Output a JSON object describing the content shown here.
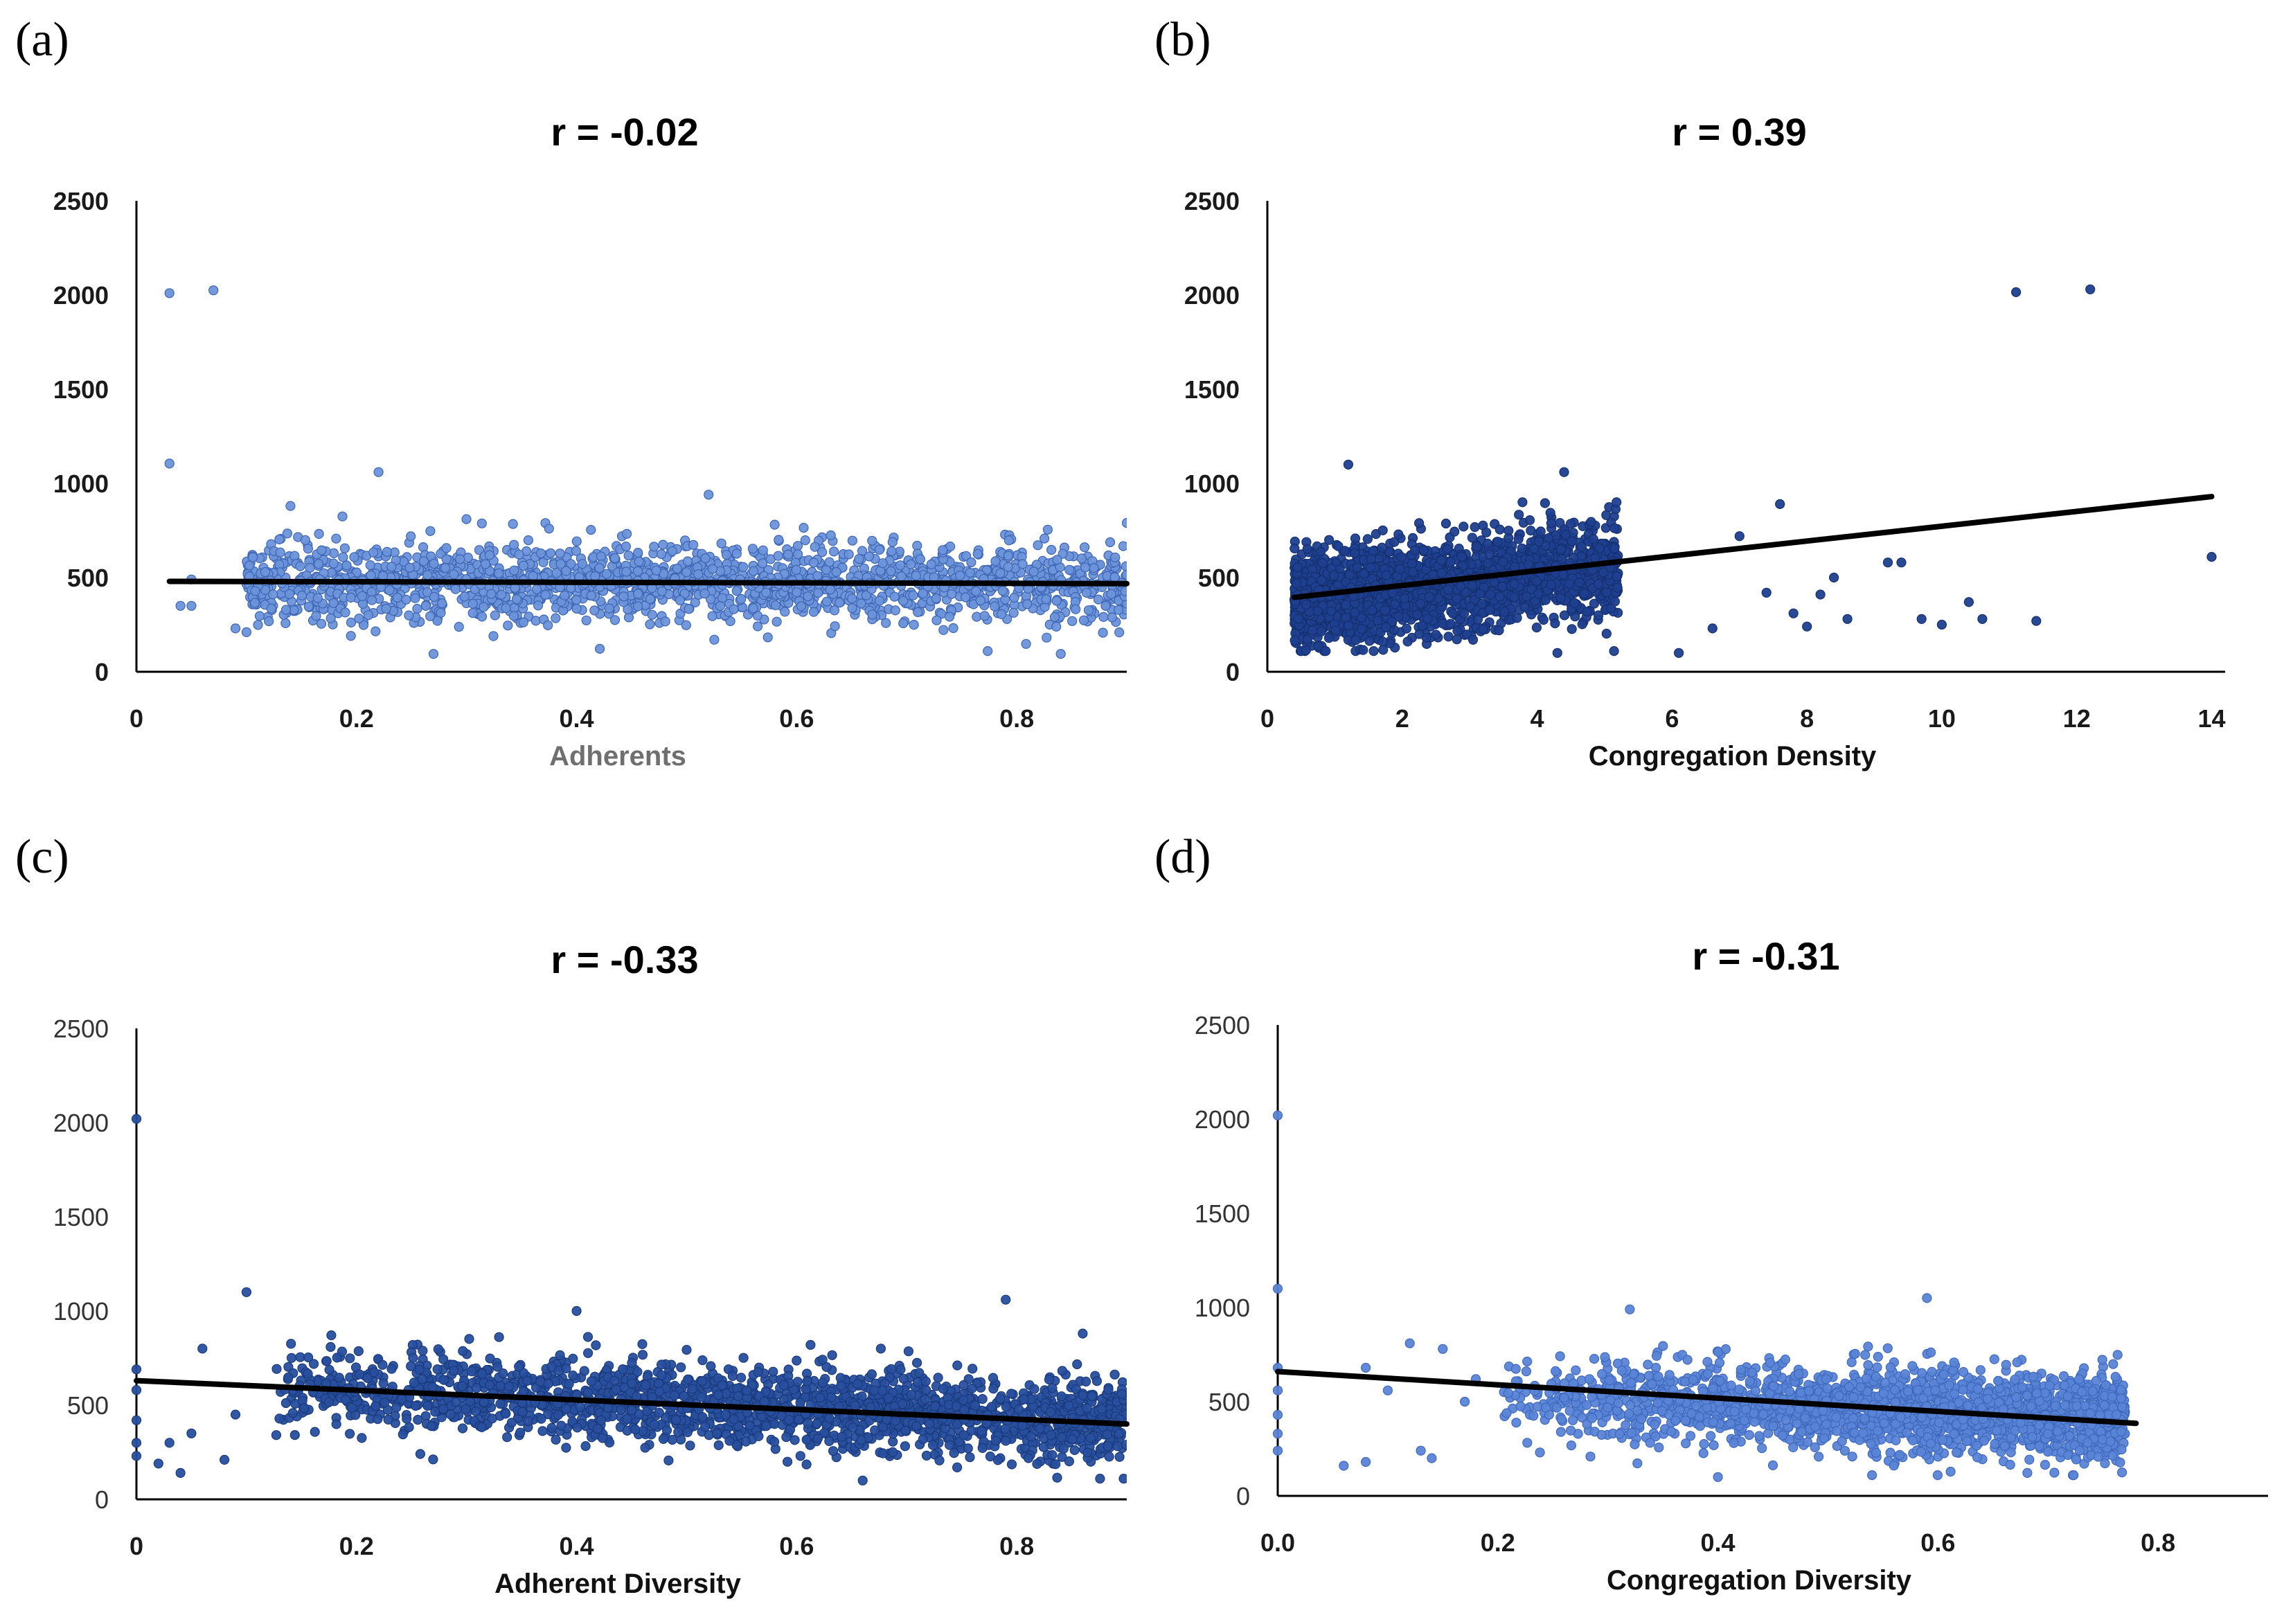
{
  "chart_data": [
    {
      "panel": "(a)",
      "type": "scatter",
      "title": "r = -0.02",
      "xlabel": "Adherents",
      "ylabel": "",
      "xlim": [
        0,
        0.9
      ],
      "ylim": [
        0,
        2500
      ],
      "xticks": [
        "0",
        "0.2",
        "0.4",
        "0.6",
        "0.8"
      ],
      "yticks": [
        "0",
        "500",
        "1000",
        "1500",
        "2000",
        "2500"
      ],
      "point_color": "#6b93da",
      "point_stroke": "#3d65b3",
      "trend": {
        "x": [
          0.03,
          0.9
        ],
        "y": [
          480,
          468
        ]
      },
      "cloud": {
        "xmin": 0.1,
        "xmax": 0.9,
        "ymean_start": 480,
        "ymean_end": 470,
        "spread": 105,
        "count": 1800
      },
      "points": [
        {
          "x": 0.03,
          "y": 2010
        },
        {
          "x": 0.07,
          "y": 2025
        },
        {
          "x": 0.03,
          "y": 1105
        },
        {
          "x": 0.04,
          "y": 350
        },
        {
          "x": 0.05,
          "y": 490
        },
        {
          "x": 0.05,
          "y": 350
        },
        {
          "x": 0.09,
          "y": 230
        },
        {
          "x": 0.1,
          "y": 210
        },
        {
          "x": 0.14,
          "y": 880
        },
        {
          "x": 0.22,
          "y": 1060
        },
        {
          "x": 0.52,
          "y": 940
        },
        {
          "x": 0.84,
          "y": 95
        },
        {
          "x": 0.27,
          "y": 95
        },
        {
          "x": 0.9,
          "y": 790
        }
      ]
    },
    {
      "panel": "(b)",
      "type": "scatter",
      "title": "r = 0.39",
      "xlabel": "Congregation Density",
      "ylabel": "",
      "xlim": [
        0,
        14.2
      ],
      "ylim": [
        0,
        2500
      ],
      "xticks": [
        "0",
        "2",
        "4",
        "6",
        "8",
        "10",
        "12",
        "14"
      ],
      "yticks": [
        "0",
        "500",
        "1000",
        "1500",
        "2000",
        "2500"
      ],
      "point_color": "#1f3f8f",
      "point_stroke": "#15306f",
      "trend": {
        "x": [
          0.4,
          14
        ],
        "y": [
          395,
          930
        ]
      },
      "cloud": {
        "xmin": 0.4,
        "xmax": 5.2,
        "ymean_start": 370,
        "ymean_end": 560,
        "spread": 120,
        "count": 2200
      },
      "points": [
        {
          "x": 11.1,
          "y": 2015
        },
        {
          "x": 12.2,
          "y": 2030
        },
        {
          "x": 14.0,
          "y": 610
        },
        {
          "x": 1.2,
          "y": 1100
        },
        {
          "x": 4.4,
          "y": 1060
        },
        {
          "x": 7.6,
          "y": 890
        },
        {
          "x": 6.6,
          "y": 230
        },
        {
          "x": 7.0,
          "y": 720
        },
        {
          "x": 7.4,
          "y": 420
        },
        {
          "x": 8.0,
          "y": 240
        },
        {
          "x": 8.6,
          "y": 280
        },
        {
          "x": 9.2,
          "y": 580
        },
        {
          "x": 9.4,
          "y": 580
        },
        {
          "x": 9.7,
          "y": 280
        },
        {
          "x": 10.0,
          "y": 250
        },
        {
          "x": 10.4,
          "y": 370
        },
        {
          "x": 10.6,
          "y": 280
        },
        {
          "x": 11.4,
          "y": 270
        },
        {
          "x": 6.1,
          "y": 100
        },
        {
          "x": 4.3,
          "y": 100
        },
        {
          "x": 8.2,
          "y": 410
        },
        {
          "x": 8.4,
          "y": 500
        },
        {
          "x": 7.8,
          "y": 310
        }
      ]
    },
    {
      "panel": "(c)",
      "type": "scatter",
      "title": "r = -0.33",
      "xlabel": "Adherent Diversity",
      "ylabel": "",
      "xlim": [
        0,
        0.9
      ],
      "ylim": [
        0,
        2500
      ],
      "xticks": [
        "0",
        "0.2",
        "0.4",
        "0.6",
        "0.8"
      ],
      "yticks": [
        "0",
        "500",
        "1000",
        "1500",
        "2000",
        "2500"
      ],
      "point_color": "#284f9e",
      "point_stroke": "#1a3a7c",
      "trend": {
        "x": [
          0,
          0.9
        ],
        "y": [
          630,
          400
        ]
      },
      "cloud": {
        "xmin": 0.12,
        "xmax": 0.9,
        "ymean_start": 590,
        "ymean_end": 410,
        "spread": 110,
        "count": 2000
      },
      "points": [
        {
          "x": 0,
          "y": 2020
        },
        {
          "x": 0,
          "y": 690
        },
        {
          "x": 0,
          "y": 580
        },
        {
          "x": 0,
          "y": 420
        },
        {
          "x": 0,
          "y": 300
        },
        {
          "x": 0,
          "y": 230
        },
        {
          "x": 0.1,
          "y": 1100
        },
        {
          "x": 0.79,
          "y": 1060
        },
        {
          "x": 0.4,
          "y": 1000
        },
        {
          "x": 0.02,
          "y": 190
        },
        {
          "x": 0.04,
          "y": 140
        },
        {
          "x": 0.06,
          "y": 800
        },
        {
          "x": 0.03,
          "y": 300
        },
        {
          "x": 0.05,
          "y": 350
        },
        {
          "x": 0.08,
          "y": 210
        },
        {
          "x": 0.09,
          "y": 450
        },
        {
          "x": 0.66,
          "y": 100
        },
        {
          "x": 0.86,
          "y": 880
        }
      ]
    },
    {
      "panel": "(d)",
      "type": "scatter",
      "title": "r = -0.31",
      "xlabel": "Congregation Diversity",
      "ylabel": "",
      "xlim": [
        0,
        0.9
      ],
      "ylim": [
        0,
        2500
      ],
      "xticks": [
        "0.0",
        "0.2",
        "0.4",
        "0.6",
        "0.8"
      ],
      "yticks": [
        "0",
        "500",
        "1000",
        "1500",
        "2000",
        "2500"
      ],
      "point_color": "#5a84d6",
      "point_stroke": "#3f69bd",
      "trend": {
        "x": [
          0,
          0.78
        ],
        "y": [
          660,
          385
        ]
      },
      "cloud": {
        "xmin": 0.2,
        "xmax": 0.77,
        "ymean_start": 520,
        "ymean_end": 420,
        "spread": 110,
        "count": 2200
      },
      "points": [
        {
          "x": 0,
          "y": 2020
        },
        {
          "x": 0,
          "y": 1100
        },
        {
          "x": 0,
          "y": 680
        },
        {
          "x": 0,
          "y": 560
        },
        {
          "x": 0,
          "y": 430
        },
        {
          "x": 0,
          "y": 330
        },
        {
          "x": 0,
          "y": 240
        },
        {
          "x": 0.06,
          "y": 160
        },
        {
          "x": 0.08,
          "y": 180
        },
        {
          "x": 0.12,
          "y": 810
        },
        {
          "x": 0.15,
          "y": 780
        },
        {
          "x": 0.13,
          "y": 240
        },
        {
          "x": 0.14,
          "y": 200
        },
        {
          "x": 0.08,
          "y": 680
        },
        {
          "x": 0.1,
          "y": 560
        },
        {
          "x": 0.32,
          "y": 990
        },
        {
          "x": 0.59,
          "y": 1050
        },
        {
          "x": 0.4,
          "y": 100
        },
        {
          "x": 0.17,
          "y": 500
        },
        {
          "x": 0.18,
          "y": 620
        }
      ]
    }
  ]
}
